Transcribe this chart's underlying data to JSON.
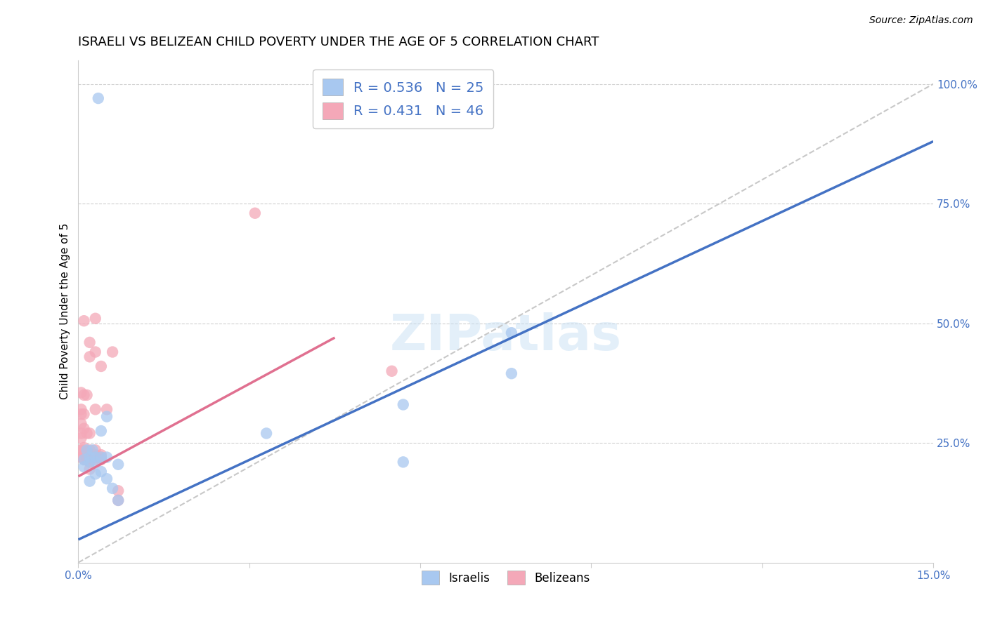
{
  "title": "ISRAELI VS BELIZEAN CHILD POVERTY UNDER THE AGE OF 5 CORRELATION CHART",
  "source": "Source: ZipAtlas.com",
  "ylabel_label": "Child Poverty Under the Age of 5",
  "xlim": [
    0.0,
    0.15
  ],
  "ylim": [
    0.0,
    1.05
  ],
  "xticks": [
    0.0,
    0.03,
    0.06,
    0.09,
    0.12,
    0.15
  ],
  "yticks": [
    0.25,
    0.5,
    0.75,
    1.0
  ],
  "xticklabels": [
    "0.0%",
    "",
    "",
    "",
    "",
    "15.0%"
  ],
  "yticklabels": [
    "25.0%",
    "50.0%",
    "75.0%",
    "100.0%"
  ],
  "watermark": "ZIPatlas",
  "legend_r_israeli": "0.536",
  "legend_n_israeli": "25",
  "legend_r_belizean": "0.431",
  "legend_n_belizean": "46",
  "israeli_color": "#a8c8f0",
  "belizean_color": "#f4a8b8",
  "israeli_line_color": "#4472c4",
  "belizean_line_color": "#e07090",
  "diagonal_color": "#c8c8c8",
  "tick_color": "#4472c4",
  "tick_fontsize": 11,
  "axis_label_fontsize": 11,
  "title_fontsize": 13,
  "israeli_line": {
    "x0": 0.0,
    "y0": 0.048,
    "x1": 0.15,
    "y1": 0.88
  },
  "belizean_line": {
    "x0": 0.0,
    "y0": 0.18,
    "x1": 0.045,
    "y1": 0.47
  },
  "diagonal_line": {
    "x0": 0.0,
    "y0": 0.0,
    "x1": 0.15,
    "y1": 1.0
  },
  "israeli_scatter": [
    [
      0.0035,
      0.97
    ],
    [
      0.001,
      0.2
    ],
    [
      0.001,
      0.215
    ],
    [
      0.0015,
      0.235
    ],
    [
      0.002,
      0.21
    ],
    [
      0.002,
      0.22
    ],
    [
      0.002,
      0.17
    ],
    [
      0.0025,
      0.235
    ],
    [
      0.003,
      0.21
    ],
    [
      0.003,
      0.185
    ],
    [
      0.003,
      0.22
    ],
    [
      0.004,
      0.275
    ],
    [
      0.004,
      0.22
    ],
    [
      0.004,
      0.19
    ],
    [
      0.005,
      0.305
    ],
    [
      0.005,
      0.22
    ],
    [
      0.005,
      0.175
    ],
    [
      0.006,
      0.155
    ],
    [
      0.007,
      0.13
    ],
    [
      0.007,
      0.205
    ],
    [
      0.076,
      0.48
    ],
    [
      0.076,
      0.395
    ],
    [
      0.057,
      0.33
    ],
    [
      0.057,
      0.21
    ],
    [
      0.033,
      0.27
    ]
  ],
  "belizean_scatter": [
    [
      0.0005,
      0.22
    ],
    [
      0.0005,
      0.235
    ],
    [
      0.0005,
      0.26
    ],
    [
      0.0005,
      0.29
    ],
    [
      0.0005,
      0.31
    ],
    [
      0.0005,
      0.32
    ],
    [
      0.0005,
      0.355
    ],
    [
      0.001,
      0.215
    ],
    [
      0.001,
      0.225
    ],
    [
      0.001,
      0.235
    ],
    [
      0.001,
      0.24
    ],
    [
      0.001,
      0.28
    ],
    [
      0.001,
      0.31
    ],
    [
      0.001,
      0.35
    ],
    [
      0.001,
      0.505
    ],
    [
      0.0015,
      0.215
    ],
    [
      0.0015,
      0.22
    ],
    [
      0.0015,
      0.225
    ],
    [
      0.0015,
      0.23
    ],
    [
      0.0015,
      0.27
    ],
    [
      0.0015,
      0.35
    ],
    [
      0.002,
      0.43
    ],
    [
      0.002,
      0.46
    ],
    [
      0.002,
      0.195
    ],
    [
      0.002,
      0.21
    ],
    [
      0.002,
      0.22
    ],
    [
      0.002,
      0.235
    ],
    [
      0.002,
      0.27
    ],
    [
      0.003,
      0.51
    ],
    [
      0.003,
      0.44
    ],
    [
      0.003,
      0.32
    ],
    [
      0.003,
      0.215
    ],
    [
      0.003,
      0.22
    ],
    [
      0.003,
      0.225
    ],
    [
      0.003,
      0.235
    ],
    [
      0.004,
      0.41
    ],
    [
      0.004,
      0.215
    ],
    [
      0.004,
      0.22
    ],
    [
      0.004,
      0.225
    ],
    [
      0.005,
      0.32
    ],
    [
      0.006,
      0.44
    ],
    [
      0.031,
      0.73
    ],
    [
      0.055,
      0.4
    ],
    [
      0.007,
      0.13
    ],
    [
      0.007,
      0.15
    ],
    [
      0.0005,
      0.27
    ]
  ]
}
